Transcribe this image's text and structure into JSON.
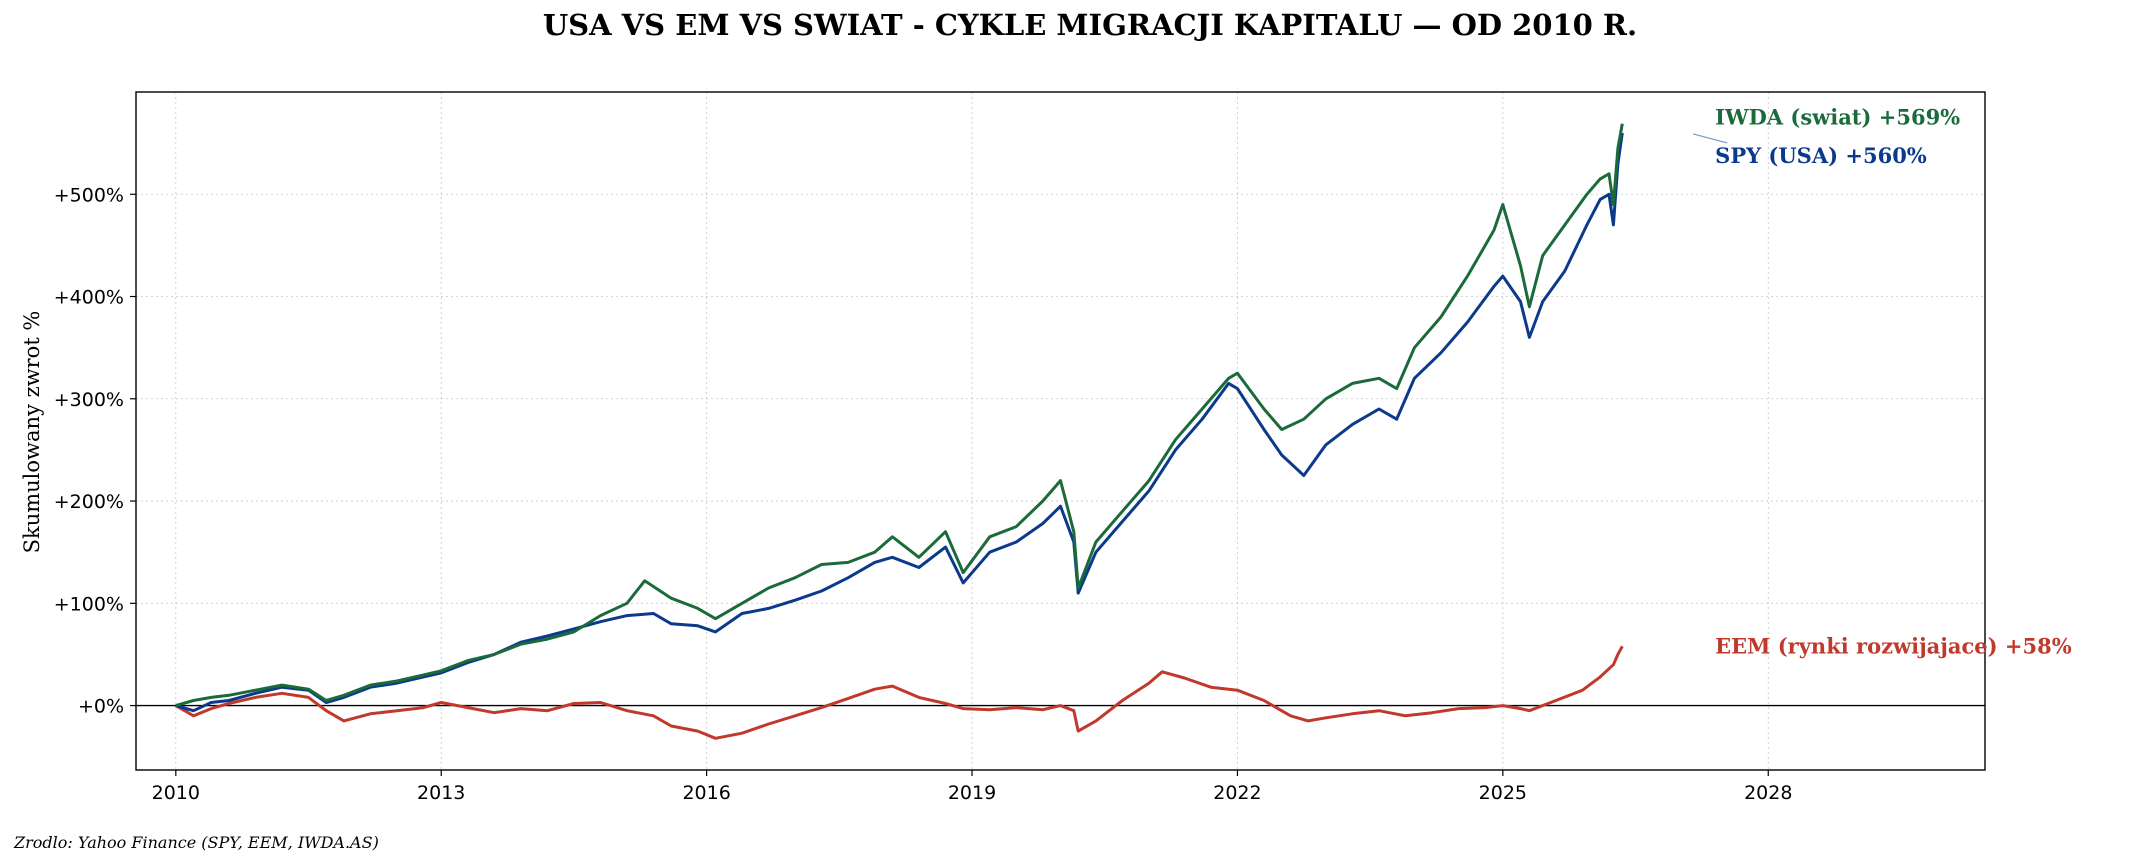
{
  "chart_data": {
    "type": "line",
    "title": "USA VS EM VS SWIAT - CYKLE MIGRACJI KAPITALU — OD 2010 R.",
    "xlabel": "",
    "ylabel": "Skumulowany zwrot %",
    "xlim": [
      2009.55,
      2030.45
    ],
    "ylim": [
      -63,
      600
    ],
    "x_ticks": [
      2010,
      2013,
      2016,
      2019,
      2022,
      2025,
      2028
    ],
    "x_tick_labels": [
      "2010",
      "2013",
      "2016",
      "2019",
      "2022",
      "2025",
      "2028"
    ],
    "y_ticks": [
      0,
      100,
      200,
      300,
      400,
      500
    ],
    "y_tick_labels": [
      "+0%",
      "+100%",
      "+200%",
      "+300%",
      "+400%",
      "+500%"
    ],
    "grid": true,
    "zero_line": true,
    "series": [
      {
        "name": "EEM (rynki rozwijajace)",
        "end_label": "EEM (rynki rozwijajace)  +58%",
        "color": "#c0392b",
        "x": [
          2010.0,
          2010.2,
          2010.4,
          2010.6,
          2010.9,
          2011.2,
          2011.5,
          2011.7,
          2011.9,
          2012.2,
          2012.5,
          2012.8,
          2013.0,
          2013.3,
          2013.6,
          2013.9,
          2014.2,
          2014.5,
          2014.8,
          2015.1,
          2015.4,
          2015.6,
          2015.9,
          2016.1,
          2016.4,
          2016.7,
          2017.0,
          2017.3,
          2017.6,
          2017.9,
          2018.1,
          2018.4,
          2018.7,
          2018.9,
          2019.2,
          2019.5,
          2019.8,
          2020.0,
          2020.15,
          2020.2,
          2020.4,
          2020.7,
          2021.0,
          2021.15,
          2021.4,
          2021.7,
          2022.0,
          2022.3,
          2022.6,
          2022.8,
          2023.0,
          2023.3,
          2023.6,
          2023.9,
          2024.2,
          2024.5,
          2024.8,
          2025.0,
          2025.2,
          2025.3,
          2025.6,
          2025.9,
          2026.1,
          2026.25,
          2026.3,
          2026.35
        ],
        "y": [
          0,
          -10,
          -3,
          2,
          8,
          12,
          8,
          -5,
          -15,
          -8,
          -5,
          -2,
          3,
          -2,
          -7,
          -3,
          -5,
          2,
          3,
          -5,
          -10,
          -20,
          -25,
          -32,
          -27,
          -18,
          -10,
          -2,
          7,
          16,
          19,
          8,
          2,
          -3,
          -4,
          -2,
          -4,
          0,
          -5,
          -25,
          -15,
          5,
          22,
          33,
          27,
          18,
          15,
          5,
          -10,
          -15,
          -12,
          -8,
          -5,
          -10,
          -7,
          -3,
          -2,
          0,
          -3,
          -5,
          5,
          15,
          28,
          40,
          50,
          58
        ]
      },
      {
        "name": "SPY (USA)",
        "end_label": "SPY (USA)  +560%",
        "color": "#0b3a8c",
        "x": [
          2010.0,
          2010.2,
          2010.4,
          2010.6,
          2010.9,
          2011.2,
          2011.5,
          2011.7,
          2011.9,
          2012.2,
          2012.5,
          2012.8,
          2013.0,
          2013.3,
          2013.6,
          2013.9,
          2014.2,
          2014.5,
          2014.8,
          2015.1,
          2015.4,
          2015.6,
          2015.9,
          2016.1,
          2016.4,
          2016.7,
          2017.0,
          2017.3,
          2017.6,
          2017.9,
          2018.1,
          2018.4,
          2018.7,
          2018.9,
          2019.2,
          2019.5,
          2019.8,
          2020.0,
          2020.15,
          2020.2,
          2020.4,
          2020.7,
          2021.0,
          2021.3,
          2021.6,
          2021.9,
          2022.0,
          2022.3,
          2022.5,
          2022.75,
          2023.0,
          2023.3,
          2023.6,
          2023.8,
          2024.0,
          2024.3,
          2024.6,
          2024.9,
          2025.0,
          2025.2,
          2025.3,
          2025.45,
          2025.7,
          2025.95,
          2026.1,
          2026.2,
          2026.25,
          2026.3,
          2026.35
        ],
        "y": [
          0,
          -5,
          3,
          5,
          12,
          18,
          15,
          3,
          8,
          18,
          22,
          28,
          32,
          42,
          50,
          62,
          68,
          75,
          82,
          88,
          90,
          80,
          78,
          72,
          90,
          95,
          103,
          112,
          125,
          140,
          145,
          135,
          155,
          120,
          150,
          160,
          178,
          195,
          160,
          110,
          150,
          180,
          210,
          250,
          280,
          315,
          310,
          270,
          245,
          225,
          255,
          275,
          290,
          280,
          320,
          345,
          375,
          410,
          420,
          395,
          360,
          395,
          425,
          470,
          495,
          500,
          470,
          530,
          560
        ]
      },
      {
        "name": "IWDA (swiat)",
        "end_label": "IWDA (swiat)  +569%",
        "color": "#1b6b3a",
        "x": [
          2010.0,
          2010.2,
          2010.4,
          2010.6,
          2010.9,
          2011.2,
          2011.5,
          2011.7,
          2011.9,
          2012.2,
          2012.5,
          2012.8,
          2013.0,
          2013.3,
          2013.6,
          2013.9,
          2014.2,
          2014.5,
          2014.8,
          2015.1,
          2015.3,
          2015.6,
          2015.9,
          2016.1,
          2016.4,
          2016.7,
          2017.0,
          2017.3,
          2017.6,
          2017.9,
          2018.1,
          2018.4,
          2018.7,
          2018.9,
          2019.2,
          2019.5,
          2019.8,
          2020.0,
          2020.15,
          2020.2,
          2020.4,
          2020.7,
          2021.0,
          2021.3,
          2021.6,
          2021.9,
          2022.0,
          2022.3,
          2022.5,
          2022.75,
          2023.0,
          2023.3,
          2023.6,
          2023.8,
          2024.0,
          2024.3,
          2024.6,
          2024.9,
          2025.0,
          2025.2,
          2025.3,
          2025.45,
          2025.7,
          2025.95,
          2026.1,
          2026.2,
          2026.25,
          2026.3,
          2026.35
        ],
        "y": [
          0,
          5,
          8,
          10,
          15,
          20,
          16,
          5,
          10,
          20,
          24,
          30,
          34,
          44,
          50,
          60,
          65,
          72,
          88,
          100,
          122,
          105,
          95,
          85,
          100,
          115,
          125,
          138,
          140,
          150,
          165,
          145,
          170,
          130,
          165,
          175,
          200,
          220,
          170,
          115,
          160,
          190,
          220,
          260,
          290,
          320,
          325,
          290,
          270,
          280,
          300,
          315,
          320,
          310,
          350,
          380,
          420,
          465,
          490,
          430,
          390,
          440,
          470,
          500,
          515,
          520,
          490,
          545,
          569
        ]
      }
    ],
    "source": "Zrodlo: Yahoo Finance (SPY, EEM, IWDA.AS)"
  }
}
